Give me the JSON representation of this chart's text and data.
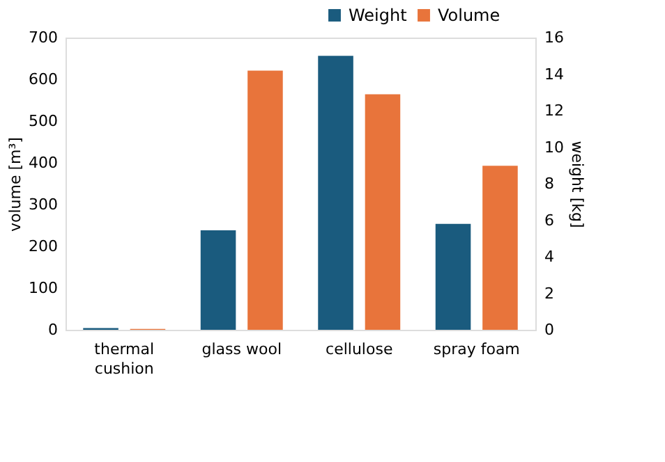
{
  "chart_data": {
    "type": "bar",
    "categories": [
      "thermal cushion",
      "glass wool",
      "cellulose",
      "spray foam"
    ],
    "series": [
      {
        "name": "Weight",
        "color": "#1a5b7e",
        "axis": "y2",
        "values": [
          0.1,
          5.45,
          15.0,
          5.8
        ]
      },
      {
        "name": "Volume",
        "color": "#e8743b",
        "values": [
          2,
          621,
          564,
          393
        ]
      }
    ],
    "ylabel": "volume  [m³]",
    "y2label": "weight [kg]",
    "ylim": [
      0,
      700
    ],
    "yticks": [
      0,
      100,
      200,
      300,
      400,
      500,
      600,
      700
    ],
    "y2lim": [
      0,
      16
    ],
    "y2ticks": [
      0,
      2,
      4,
      6,
      8,
      10,
      12,
      14,
      16
    ],
    "grid": false,
    "legend": "top right"
  }
}
